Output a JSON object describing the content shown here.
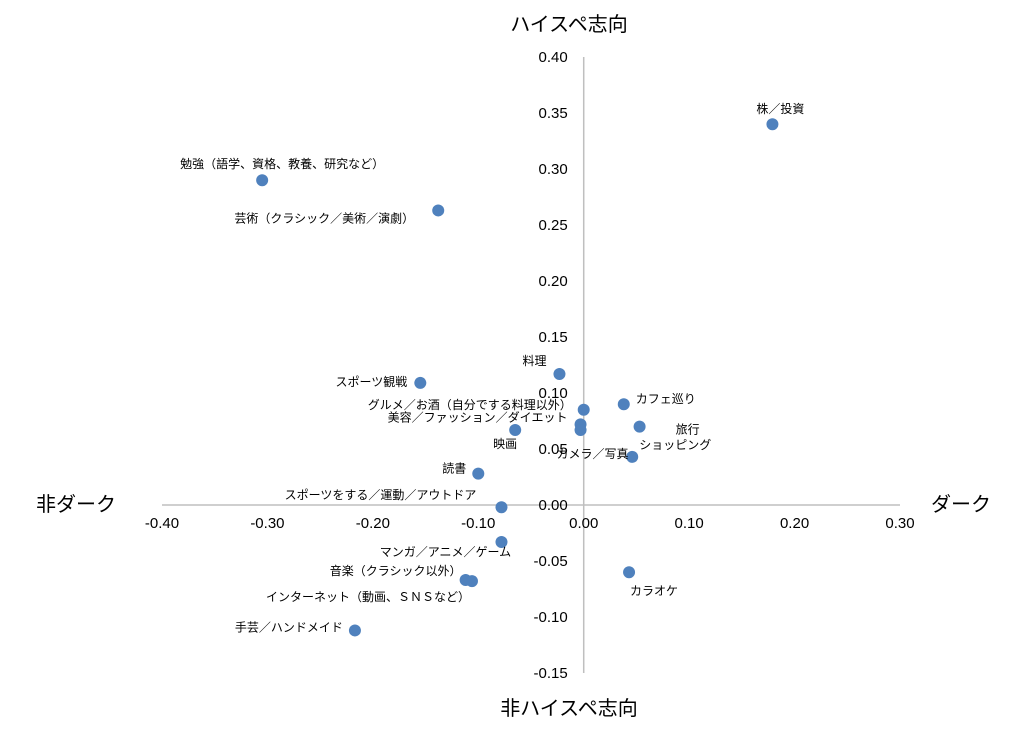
{
  "chart_data": {
    "type": "scatter",
    "xlim": [
      -0.4,
      0.3
    ],
    "ylim": [
      -0.15,
      0.4
    ],
    "x_ticks": [
      "-0.40",
      "-0.30",
      "-0.20",
      "-0.10",
      "0.00",
      "0.10",
      "0.20",
      "0.30"
    ],
    "y_ticks": [
      "0.40",
      "0.35",
      "0.30",
      "0.25",
      "0.20",
      "0.15",
      "0.10",
      "0.05",
      "0.00",
      "-0.05",
      "-0.10",
      "-0.15"
    ],
    "axis_labels": {
      "top": "ハイスペ志向",
      "bottom": "非ハイスペ志向",
      "left": "非ダーク",
      "right": "ダーク"
    },
    "marker_color": "#4F81BD",
    "points": [
      {
        "label": "株／投資",
        "x": 0.179,
        "y": 0.34
      },
      {
        "label": "勉強（語学、資格、教養、研究など）",
        "x": -0.305,
        "y": 0.29
      },
      {
        "label": "芸術（クラシック／美術／演劇）",
        "x": -0.138,
        "y": 0.263
      },
      {
        "label": "料理",
        "x": -0.023,
        "y": 0.117
      },
      {
        "label": "スポーツ観戦",
        "x": -0.155,
        "y": 0.109
      },
      {
        "label": "カフェ巡り",
        "x": 0.038,
        "y": 0.09
      },
      {
        "label": "グルメ／お酒（自分でする料理以外）",
        "x": 0.0,
        "y": 0.085
      },
      {
        "label": "美容／ファッション／ダイエット",
        "x": -0.003,
        "y": 0.072
      },
      {
        "label": "映画",
        "x": -0.065,
        "y": 0.067
      },
      {
        "label": "カメラ／写真",
        "x": -0.003,
        "y": 0.067
      },
      {
        "label": "旅行",
        "x": 0.053,
        "y": 0.07
      },
      {
        "label": "ショッピング",
        "x": 0.046,
        "y": 0.043
      },
      {
        "label": "読書",
        "x": -0.1,
        "y": 0.028
      },
      {
        "label": "スポーツをする／運動／アウトドア",
        "x": -0.078,
        "y": -0.002
      },
      {
        "label": "マンガ／アニメ／ゲーム",
        "x": -0.078,
        "y": -0.033
      },
      {
        "label": "カラオケ",
        "x": 0.043,
        "y": -0.06
      },
      {
        "label": "音楽（クラシック以外）",
        "x": -0.112,
        "y": -0.067
      },
      {
        "label": "インターネット（動画、ＳＮＳなど）",
        "x": -0.106,
        "y": -0.068
      },
      {
        "label": "手芸／ハンドメイド",
        "x": -0.217,
        "y": -0.112
      }
    ]
  }
}
